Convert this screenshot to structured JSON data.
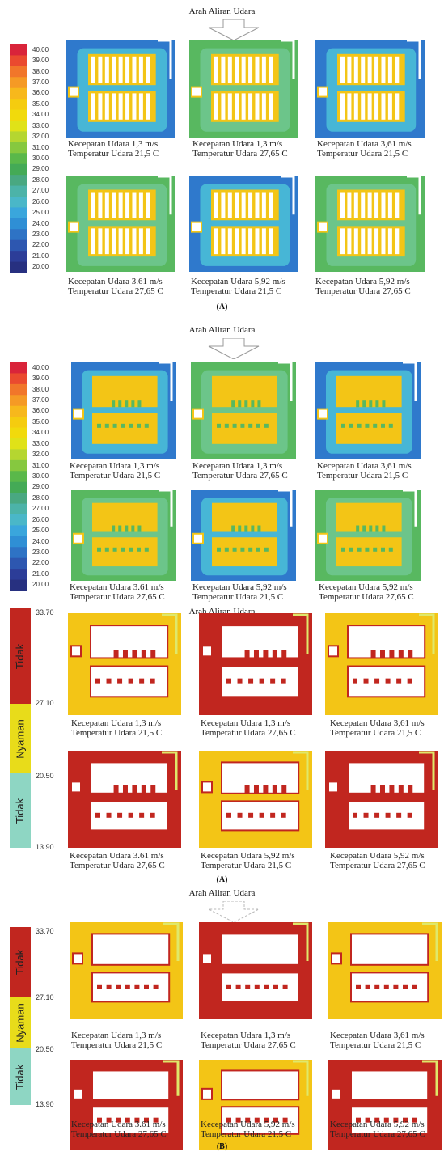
{
  "flow_label": "Arah Aliran Udara",
  "temp_scale": [
    "40.00",
    "39.00",
    "38.00",
    "37.00",
    "36.00",
    "35.00",
    "34.00",
    "33.00",
    "32.00",
    "31.00",
    "30.00",
    "29.00",
    "28.00",
    "27.00",
    "26.00",
    "25.00",
    "24.00",
    "23.00",
    "22.00",
    "21.00",
    "20.00"
  ],
  "comfort_scale": {
    "ticks": [
      "33.70",
      "27.10",
      "20.50",
      "13.90"
    ],
    "zones": [
      "Tidak",
      "Nyaman",
      "Tidak"
    ]
  },
  "captions": [
    {
      "speed": "Kecepatan Udara 1,3 m/s",
      "temp": "Temperatur Udara 21,5 C"
    },
    {
      "speed": "Kecepatan Udara 1,3 m/s",
      "temp": "Temperatur Udara 27,65 C"
    },
    {
      "speed": "Kecepatan Udara 3,61 m/s",
      "temp": "Temperatur Udara 21,5 C"
    },
    {
      "speed": "Kecepatan Udara 3.61 m/s",
      "temp": "Temperatur Udara 27,65 C"
    },
    {
      "speed": "Kecepatan Udara 5,92 m/s",
      "temp": "Temperatur Udara 21,5 C"
    },
    {
      "speed": "Kecepatan Udara 5,92 m/s",
      "temp": "Temperatur Udara 27,65 C"
    }
  ],
  "label_a": "(A)",
  "label_b": "(B)",
  "colors": {
    "scale": [
      "#d9243a",
      "#ea4a2f",
      "#f1762a",
      "#f59a25",
      "#f7b81c",
      "#f5cc0f",
      "#f1da0c",
      "#e0e218",
      "#b5d630",
      "#86c83f",
      "#5ab84a",
      "#44aa56",
      "#49a881",
      "#4cb3a8",
      "#4ab7c8",
      "#3aa6dc",
      "#2f8fd5",
      "#2e73c5",
      "#2d57b0",
      "#2c3d98",
      "#273080"
    ],
    "blue": "#2f79cc",
    "cyan": "#47b6d6",
    "green": "#58b860",
    "yellow": "#f3c516",
    "red": "#c1261f",
    "palegreen": "#8ed6c3",
    "lime": "#c9d635"
  }
}
